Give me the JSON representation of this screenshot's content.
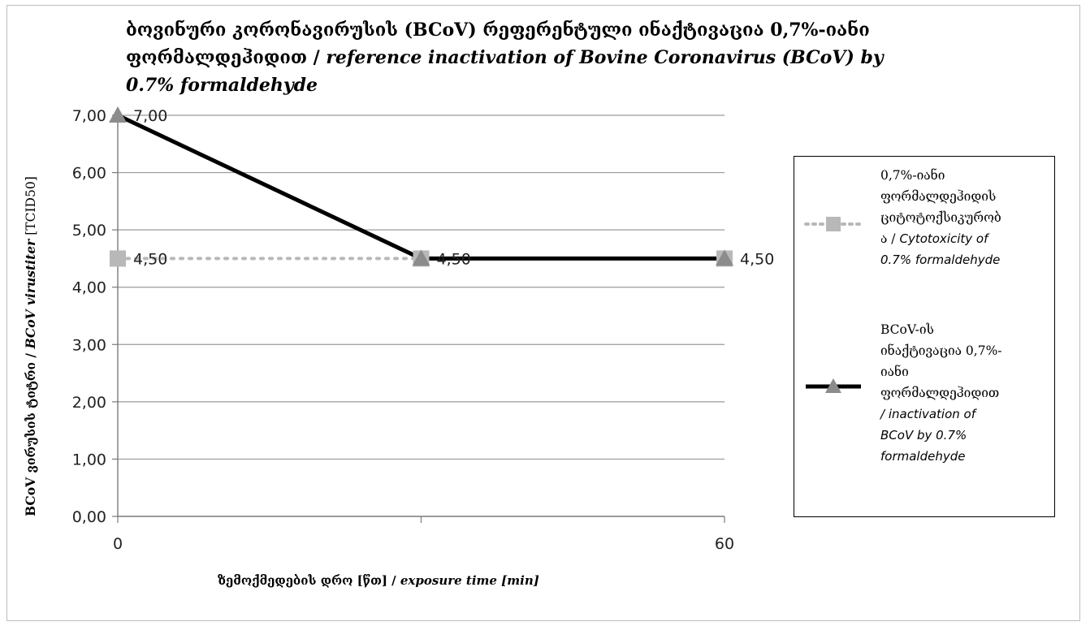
{
  "chart_data": {
    "type": "line",
    "title": {
      "line1": "ბოვინური კორონავირუსის (BCoV) რეფერენტული ინაქტივაცია 0,7%-იანი",
      "line2_ka": "ფორმალდეჰიდით / ",
      "line2_en": "reference inactivation of Bovine Coronavirus (BCoV) by",
      "line3_en": "0.7% formaldehyde"
    },
    "xlabel": {
      "ka": "ზემოქმედების დრო [წთ] / ",
      "en": "exposure time [min]"
    },
    "ylabel": {
      "ka": "BCoV ვირუსის ტიტრი / ",
      "en": "BCoV virustiter",
      "unit": " [TCID50]"
    },
    "ylim": [
      0,
      7
    ],
    "y_ticks": [
      "0,00",
      "1,00",
      "2,00",
      "3,00",
      "4,00",
      "5,00",
      "6,00",
      "7,00"
    ],
    "x": [
      0,
      30,
      60
    ],
    "x_tick_labels": [
      "0",
      "",
      "60"
    ],
    "series": [
      {
        "name_ka": "0,7%-იანი ფორმალდეჰიდის ციტოტოქსიკურობა / ",
        "name_en": "Cytotoxicity of 0.7% formaldehyde",
        "legend_lines": [
          "0,7%-იანი",
          "ფორმალდეჰიდის",
          "ციტოტოქსიკურობ",
          "ა / "
        ],
        "legend_lines_en": [
          "Cytotoxicity of",
          "0.7% formaldehyde"
        ],
        "values": [
          4.5,
          4.5,
          4.5
        ],
        "data_labels": [
          "4,50",
          "",
          ""
        ],
        "marker": "square",
        "line_style": "dotted",
        "color": "#b8b8b8"
      },
      {
        "name_ka": "BCoV-ის ინაქტივაცია 0,7%-იანი ფორმალდეჰიდით / ",
        "name_en": "inactivation of BCoV by 0.7% formaldehyde",
        "legend_lines": [
          "BCoV-ის",
          "ინაქტივაცია  0,7%-",
          "იანი",
          "ფორმალდეჰიდით"
        ],
        "legend_lines_en": [
          "/ inactivation of",
          "BCoV by 0.7%",
          "formaldehyde"
        ],
        "values": [
          7.0,
          4.5,
          4.5
        ],
        "data_labels": [
          "7,00",
          "4,50",
          "4,50"
        ],
        "marker": "triangle",
        "line_style": "solid",
        "color": "#000000",
        "marker_color": "#8c8c8c"
      }
    ],
    "grid": true,
    "legend_position": "right"
  }
}
